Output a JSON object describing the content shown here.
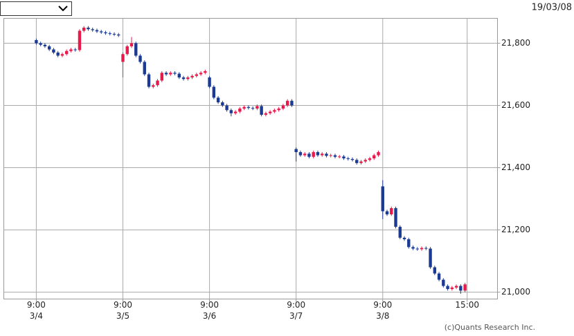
{
  "chart_data": {
    "type": "candlestick",
    "date": "19/03/08",
    "credit": "(c)Quants Research Inc.",
    "up_color": "#e8194b",
    "down_color": "#1b3a94",
    "grid": true,
    "xlim": [
      -7.5,
      106.5
    ],
    "ylim": [
      20978,
      21880
    ],
    "yticks": [
      {
        "value": 21000,
        "label": "21,000"
      },
      {
        "value": 21200,
        "label": "21,200"
      },
      {
        "value": 21400,
        "label": "21,400"
      },
      {
        "value": 21600,
        "label": "21,600"
      },
      {
        "value": 21800,
        "label": "21,800"
      }
    ],
    "xticks": [
      {
        "value": 0,
        "label": "9:00"
      },
      {
        "value": 20,
        "label": "9:00"
      },
      {
        "value": 40,
        "label": "9:00"
      },
      {
        "value": 60,
        "label": "9:00"
      },
      {
        "value": 80,
        "label": "9:00"
      },
      {
        "value": 99.5,
        "label": "15:00"
      }
    ],
    "date_ticks": [
      {
        "value": 0,
        "label": "3/4"
      },
      {
        "value": 20,
        "label": "3/5"
      },
      {
        "value": 40,
        "label": "3/6"
      },
      {
        "value": 60,
        "label": "3/7"
      },
      {
        "value": 80,
        "label": "3/8"
      }
    ],
    "x": [
      0,
      1,
      2,
      3,
      4,
      5,
      6,
      7,
      8,
      9,
      10,
      11,
      12,
      13,
      14,
      15,
      16,
      17,
      18,
      19,
      20,
      21,
      22,
      23,
      24,
      25,
      26,
      27,
      28,
      29,
      30,
      31,
      32,
      33,
      34,
      35,
      36,
      37,
      38,
      39,
      40,
      41,
      42,
      43,
      44,
      45,
      46,
      47,
      48,
      49,
      50,
      51,
      52,
      53,
      54,
      55,
      56,
      57,
      58,
      59,
      60,
      61,
      62,
      63,
      64,
      65,
      66,
      67,
      68,
      69,
      70,
      71,
      72,
      73,
      74,
      75,
      76,
      77,
      78,
      79,
      80,
      81,
      82,
      83,
      84,
      85,
      86,
      87,
      88,
      89,
      90,
      91,
      92,
      93,
      94,
      95,
      96,
      97,
      98,
      99
    ],
    "open": [
      21810,
      21800,
      21795,
      21790,
      21780,
      21770,
      21760,
      21765,
      21775,
      21780,
      21778,
      21840,
      21850,
      21845,
      21842,
      21838,
      21835,
      21832,
      21830,
      21828,
      21740,
      21765,
      21790,
      21800,
      21760,
      21740,
      21700,
      21660,
      21665,
      21680,
      21705,
      21700,
      21705,
      21702,
      21690,
      21685,
      21690,
      21695,
      21700,
      21705,
      21690,
      21660,
      21625,
      21610,
      21600,
      21585,
      21575,
      21580,
      21590,
      21595,
      21592,
      21590,
      21598,
      21570,
      21575,
      21580,
      21585,
      21590,
      21600,
      21615,
      21460,
      21450,
      21440,
      21445,
      21435,
      21450,
      21440,
      21445,
      21438,
      21440,
      21435,
      21436,
      21430,
      21428,
      21425,
      21415,
      21420,
      21425,
      21430,
      21440,
      21340,
      21260,
      21250,
      21270,
      21210,
      21175,
      21170,
      21145,
      21140,
      21138,
      21142,
      21140,
      21080,
      21060,
      21040,
      21020,
      21010,
      21015,
      21020,
      21005
    ],
    "high": [
      21815,
      21805,
      21800,
      21795,
      21785,
      21775,
      21770,
      21780,
      21785,
      21785,
      21845,
      21855,
      21855,
      21850,
      21847,
      21843,
      21840,
      21837,
      21835,
      21833,
      21770,
      21795,
      21820,
      21805,
      21765,
      21745,
      21705,
      21670,
      21685,
      21710,
      21710,
      21710,
      21710,
      21707,
      21695,
      21695,
      21700,
      21705,
      21710,
      21715,
      21695,
      21665,
      21630,
      21615,
      21605,
      21590,
      21585,
      21595,
      21600,
      21600,
      21597,
      21603,
      21603,
      21580,
      21585,
      21590,
      21595,
      21605,
      21620,
      21620,
      21465,
      21455,
      21450,
      21450,
      21455,
      21455,
      21450,
      21450,
      21445,
      21445,
      21441,
      21441,
      21435,
      21433,
      21430,
      21425,
      21430,
      21435,
      21445,
      21455,
      21360,
      21265,
      21275,
      21275,
      21215,
      21180,
      21175,
      21150,
      21145,
      21147,
      21147,
      21145,
      21085,
      21065,
      21045,
      21025,
      21020,
      21025,
      21025,
      21030
    ],
    "low": [
      21795,
      21790,
      21785,
      21775,
      21765,
      21755,
      21755,
      21760,
      21770,
      21773,
      21773,
      21835,
      21840,
      21837,
      21833,
      21830,
      21827,
      21825,
      21823,
      21820,
      21690,
      21760,
      21785,
      21755,
      21735,
      21695,
      21655,
      21655,
      21660,
      21675,
      21695,
      21695,
      21697,
      21685,
      21680,
      21680,
      21685,
      21690,
      21695,
      21700,
      21655,
      21620,
      21605,
      21595,
      21580,
      21565,
      21570,
      21575,
      21585,
      21587,
      21585,
      21585,
      21565,
      21565,
      21570,
      21575,
      21580,
      21585,
      21595,
      21595,
      21420,
      21435,
      21435,
      21430,
      21430,
      21435,
      21435,
      21433,
      21433,
      21430,
      21430,
      21425,
      21423,
      21420,
      21410,
      21410,
      21415,
      21420,
      21425,
      21435,
      21235,
      21245,
      21245,
      21205,
      21170,
      21165,
      21140,
      21135,
      21133,
      21133,
      21135,
      21075,
      21055,
      21035,
      21015,
      21005,
      21005,
      21010,
      20995,
      21000
    ],
    "close": [
      21800,
      21795,
      21790,
      21780,
      21770,
      21760,
      21765,
      21775,
      21780,
      21778,
      21840,
      21850,
      21845,
      21842,
      21838,
      21835,
      21832,
      21830,
      21828,
      21825,
      21765,
      21790,
      21800,
      21760,
      21740,
      21700,
      21660,
      21665,
      21680,
      21705,
      21700,
      21705,
      21702,
      21690,
      21685,
      21690,
      21695,
      21700,
      21705,
      21710,
      21660,
      21625,
      21610,
      21600,
      21585,
      21575,
      21580,
      21590,
      21595,
      21592,
      21590,
      21598,
      21570,
      21575,
      21580,
      21585,
      21590,
      21600,
      21615,
      21600,
      21450,
      21440,
      21445,
      21435,
      21450,
      21440,
      21445,
      21438,
      21440,
      21435,
      21436,
      21430,
      21428,
      21425,
      21415,
      21420,
      21425,
      21430,
      21440,
      21450,
      21260,
      21250,
      21270,
      21210,
      21175,
      21170,
      21145,
      21140,
      21138,
      21142,
      21140,
      21080,
      21060,
      21040,
      21020,
      21010,
      21015,
      21020,
      21005,
      21025
    ]
  }
}
